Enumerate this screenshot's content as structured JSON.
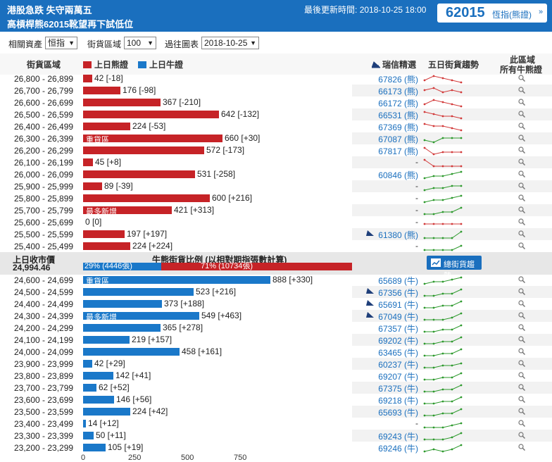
{
  "header": {
    "headline1": "港股急跌 失守兩萬五",
    "headline2": "高槓桿熊62015靴望再下試低位",
    "update_label": "最後更新時間:",
    "update_time": "2018-10-25 18:00",
    "code": "62015",
    "code_name": "恆指(熊證)",
    "code_arrow": "»"
  },
  "controls": {
    "asset_label": "相關資產",
    "asset_value": "恒指",
    "range_label": "街貨區域",
    "range_value": "100",
    "past_label": "過往圖表",
    "past_value": "2018-10-25"
  },
  "columns": {
    "range": "街貨區域",
    "bear_legend": "上日熊證",
    "bull_legend": "上日牛證",
    "recommend": "瑞信精選",
    "trend": "五日街貨趨勢",
    "all_line1": "此區域",
    "all_line2": "所有牛熊證"
  },
  "icons": {
    "pick": "credit-suisse-sail-icon",
    "search": "magnifier-icon",
    "trend": "chart-line-icon"
  },
  "colors": {
    "bear": "#c62327",
    "bull": "#1a78c9",
    "header": "#1a6fbe"
  },
  "bear_rows": [
    {
      "range": "26,800 - 26,899",
      "value": 42,
      "label": "42 [-18]",
      "rec": "67826 (熊)",
      "pick": false,
      "tag": "",
      "trend": [
        3,
        1,
        2,
        3,
        4
      ]
    },
    {
      "range": "26,700 - 26,799",
      "value": 176,
      "label": "176 [-98]",
      "rec": "66173 (熊)",
      "pick": false,
      "tag": "",
      "trend": [
        2,
        1,
        3,
        2,
        3
      ]
    },
    {
      "range": "26,600 - 26,699",
      "value": 367,
      "label": "367 [-210]",
      "rec": "66172 (熊)",
      "pick": false,
      "tag": "",
      "trend": [
        3,
        1,
        2,
        3,
        4
      ]
    },
    {
      "range": "26,500 - 26,599",
      "value": 642,
      "label": "642 [-132]",
      "rec": "66531 (熊)",
      "pick": false,
      "tag": "",
      "trend": [
        1,
        2,
        3,
        3,
        4
      ]
    },
    {
      "range": "26,400 - 26,499",
      "value": 224,
      "label": "224 [-53]",
      "rec": "67369 (熊)",
      "pick": false,
      "tag": "",
      "trend": [
        1,
        2,
        2,
        3,
        4
      ]
    },
    {
      "range": "26,300 - 26,399",
      "value": 660,
      "label": "660 [+30]",
      "rec": "67087 (熊)",
      "pick": false,
      "tag": "重貨區",
      "trend": [
        3,
        4,
        2,
        2,
        2
      ]
    },
    {
      "range": "26,200 - 26,299",
      "value": 572,
      "label": "572 [-173]",
      "rec": "67817 (熊)",
      "pick": false,
      "tag": "",
      "trend": [
        1,
        4,
        3,
        3,
        3
      ]
    },
    {
      "range": "26,100 - 26,199",
      "value": 45,
      "label": "45 [+8]",
      "rec": "-",
      "pick": false,
      "tag": "",
      "trend": [
        1,
        4,
        4,
        4,
        4
      ]
    },
    {
      "range": "26,000 - 26,099",
      "value": 531,
      "label": "531 [-258]",
      "rec": "60846 (熊)",
      "pick": false,
      "tag": "",
      "trend": [
        4,
        3,
        3,
        2,
        1
      ]
    },
    {
      "range": "25,900 - 25,999",
      "value": 89,
      "label": "89 [-39]",
      "rec": "-",
      "pick": false,
      "tag": "",
      "trend": [
        4,
        3,
        3,
        2,
        2
      ]
    },
    {
      "range": "25,800 - 25,899",
      "value": 600,
      "label": "600 [+216]",
      "rec": "-",
      "pick": false,
      "tag": "",
      "trend": [
        4,
        3,
        3,
        2,
        1
      ]
    },
    {
      "range": "25,700 - 25,799",
      "value": 421,
      "label": "421 [+313]",
      "rec": "-",
      "pick": false,
      "tag": "最多新增",
      "trend": [
        4,
        4,
        3,
        3,
        1
      ]
    },
    {
      "range": "25,600 - 25,699",
      "value": 0,
      "label": "0 [0]",
      "rec": "-",
      "pick": false,
      "tag": "",
      "trend": [
        3,
        3,
        3,
        3,
        3
      ]
    },
    {
      "range": "25,500 - 25,599",
      "value": 197,
      "label": "197 [+197]",
      "rec": "61380 (熊)",
      "pick": true,
      "tag": "",
      "trend": [
        4,
        4,
        4,
        4,
        1
      ]
    },
    {
      "range": "25,400 - 25,499",
      "value": 224,
      "label": "224 [+224]",
      "rec": "-",
      "pick": false,
      "tag": "",
      "trend": [
        4,
        4,
        4,
        4,
        2
      ]
    }
  ],
  "middle": {
    "prev_close_label": "上日收市價",
    "prev_close_value": "24,994.46",
    "ratio_title": "牛熊街貨比例 (以相對期指張數計算)",
    "bull_pct": 29,
    "bull_text": "29% (4446張)",
    "bear_text": "71% (10734張)",
    "button": "總街貨趨勢"
  },
  "bull_rows": [
    {
      "range": "24,600 - 24,699",
      "value": 888,
      "label": "888 [+330]",
      "rec": "65689 (牛)",
      "pick": false,
      "tag": "重貨區",
      "trend": [
        4,
        3,
        3,
        2,
        1
      ]
    },
    {
      "range": "24,500 - 24,599",
      "value": 523,
      "label": "523 [+216]",
      "rec": "67356 (牛)",
      "pick": true,
      "tag": "",
      "trend": [
        4,
        4,
        3,
        3,
        1
      ]
    },
    {
      "range": "24,400 - 24,499",
      "value": 373,
      "label": "373 [+188]",
      "rec": "65691 (牛)",
      "pick": true,
      "tag": "",
      "trend": [
        4,
        4,
        3,
        3,
        1
      ]
    },
    {
      "range": "24,300 - 24,399",
      "value": 549,
      "label": "549 [+463]",
      "rec": "67049 (牛)",
      "pick": true,
      "tag": "最多新增",
      "trend": [
        4,
        4,
        4,
        3,
        1
      ]
    },
    {
      "range": "24,200 - 24,299",
      "value": 365,
      "label": "365 [+278]",
      "rec": "67357 (牛)",
      "pick": false,
      "tag": "",
      "trend": [
        4,
        4,
        3,
        3,
        1
      ]
    },
    {
      "range": "24,100 - 24,199",
      "value": 219,
      "label": "219 [+157]",
      "rec": "69202 (牛)",
      "pick": false,
      "tag": "",
      "trend": [
        4,
        4,
        3,
        3,
        1
      ]
    },
    {
      "range": "24,000 - 24,099",
      "value": 458,
      "label": "458 [+161]",
      "rec": "63465 (牛)",
      "pick": false,
      "tag": "",
      "trend": [
        4,
        4,
        3,
        3,
        1
      ]
    },
    {
      "range": "23,900 - 23,999",
      "value": 42,
      "label": "42 [+29]",
      "rec": "60237 (牛)",
      "pick": false,
      "tag": "",
      "trend": [
        4,
        4,
        3,
        3,
        2
      ]
    },
    {
      "range": "23,800 - 23,899",
      "value": 142,
      "label": "142 [+41]",
      "rec": "69207 (牛)",
      "pick": false,
      "tag": "",
      "trend": [
        4,
        4,
        3,
        3,
        1
      ]
    },
    {
      "range": "23,700 - 23,799",
      "value": 62,
      "label": "62 [+52]",
      "rec": "67375 (牛)",
      "pick": false,
      "tag": "",
      "trend": [
        4,
        4,
        3,
        3,
        1
      ]
    },
    {
      "range": "23,600 - 23,699",
      "value": 146,
      "label": "146 [+56]",
      "rec": "69218 (牛)",
      "pick": false,
      "tag": "",
      "trend": [
        4,
        4,
        3,
        3,
        1
      ]
    },
    {
      "range": "23,500 - 23,599",
      "value": 224,
      "label": "224 [+42]",
      "rec": "65693 (牛)",
      "pick": false,
      "tag": "",
      "trend": [
        4,
        4,
        3,
        3,
        1
      ]
    },
    {
      "range": "23,400 - 23,499",
      "value": 14,
      "label": "14 [+12]",
      "rec": "-",
      "pick": false,
      "tag": "",
      "trend": [
        4,
        4,
        4,
        3,
        2
      ]
    },
    {
      "range": "23,300 - 23,399",
      "value": 50,
      "label": "50 [+11]",
      "rec": "69243 (牛)",
      "pick": false,
      "tag": "",
      "trend": [
        4,
        4,
        4,
        3,
        1
      ]
    },
    {
      "range": "23,200 - 23,299",
      "value": 105,
      "label": "105 [+19]",
      "rec": "69246 (牛)",
      "pick": false,
      "tag": "",
      "trend": [
        4,
        3,
        4,
        3,
        1
      ]
    }
  ],
  "axis": {
    "ticks": [
      0,
      250,
      500,
      750
    ]
  }
}
